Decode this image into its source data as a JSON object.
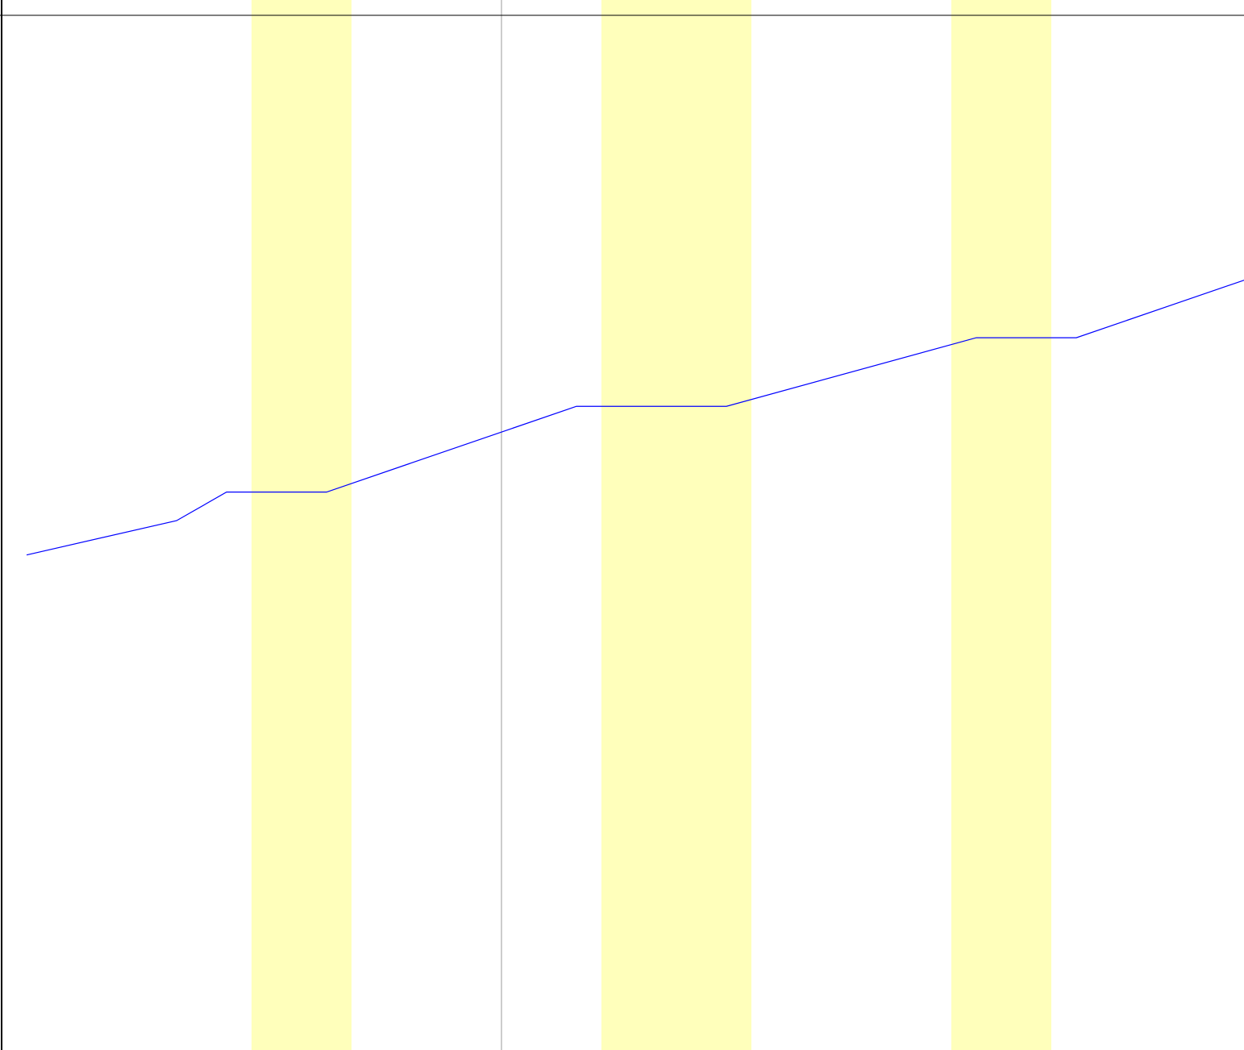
{
  "chart_data": {
    "type": "line",
    "title": "",
    "xlabel": "",
    "ylabel": "",
    "grid": false,
    "legend": "none",
    "series": [
      {
        "points": [
          [
            0.5,
            43.3
          ],
          [
            3.5,
            46.3
          ],
          [
            4.5,
            48.8
          ],
          [
            6.5,
            48.8
          ],
          [
            11.5,
            56.3
          ],
          [
            14.5,
            56.3
          ],
          [
            19.5,
            62.3
          ],
          [
            21.5,
            62.3
          ],
          [
            25.5,
            68.3
          ]
        ]
      }
    ],
    "highlight_ranges": [
      [
        5,
        7
      ],
      [
        12,
        15
      ],
      [
        19,
        21
      ]
    ],
    "reference_line_x": 10,
    "xlim": [
      0,
      25.5
    ],
    "ylim": [
      0,
      90.5
    ],
    "colors": {
      "line": "#0000ff",
      "highlight": "#ffffbb",
      "axis": "#000000",
      "reference_line": "#999999",
      "background": "#ffffff"
    }
  }
}
